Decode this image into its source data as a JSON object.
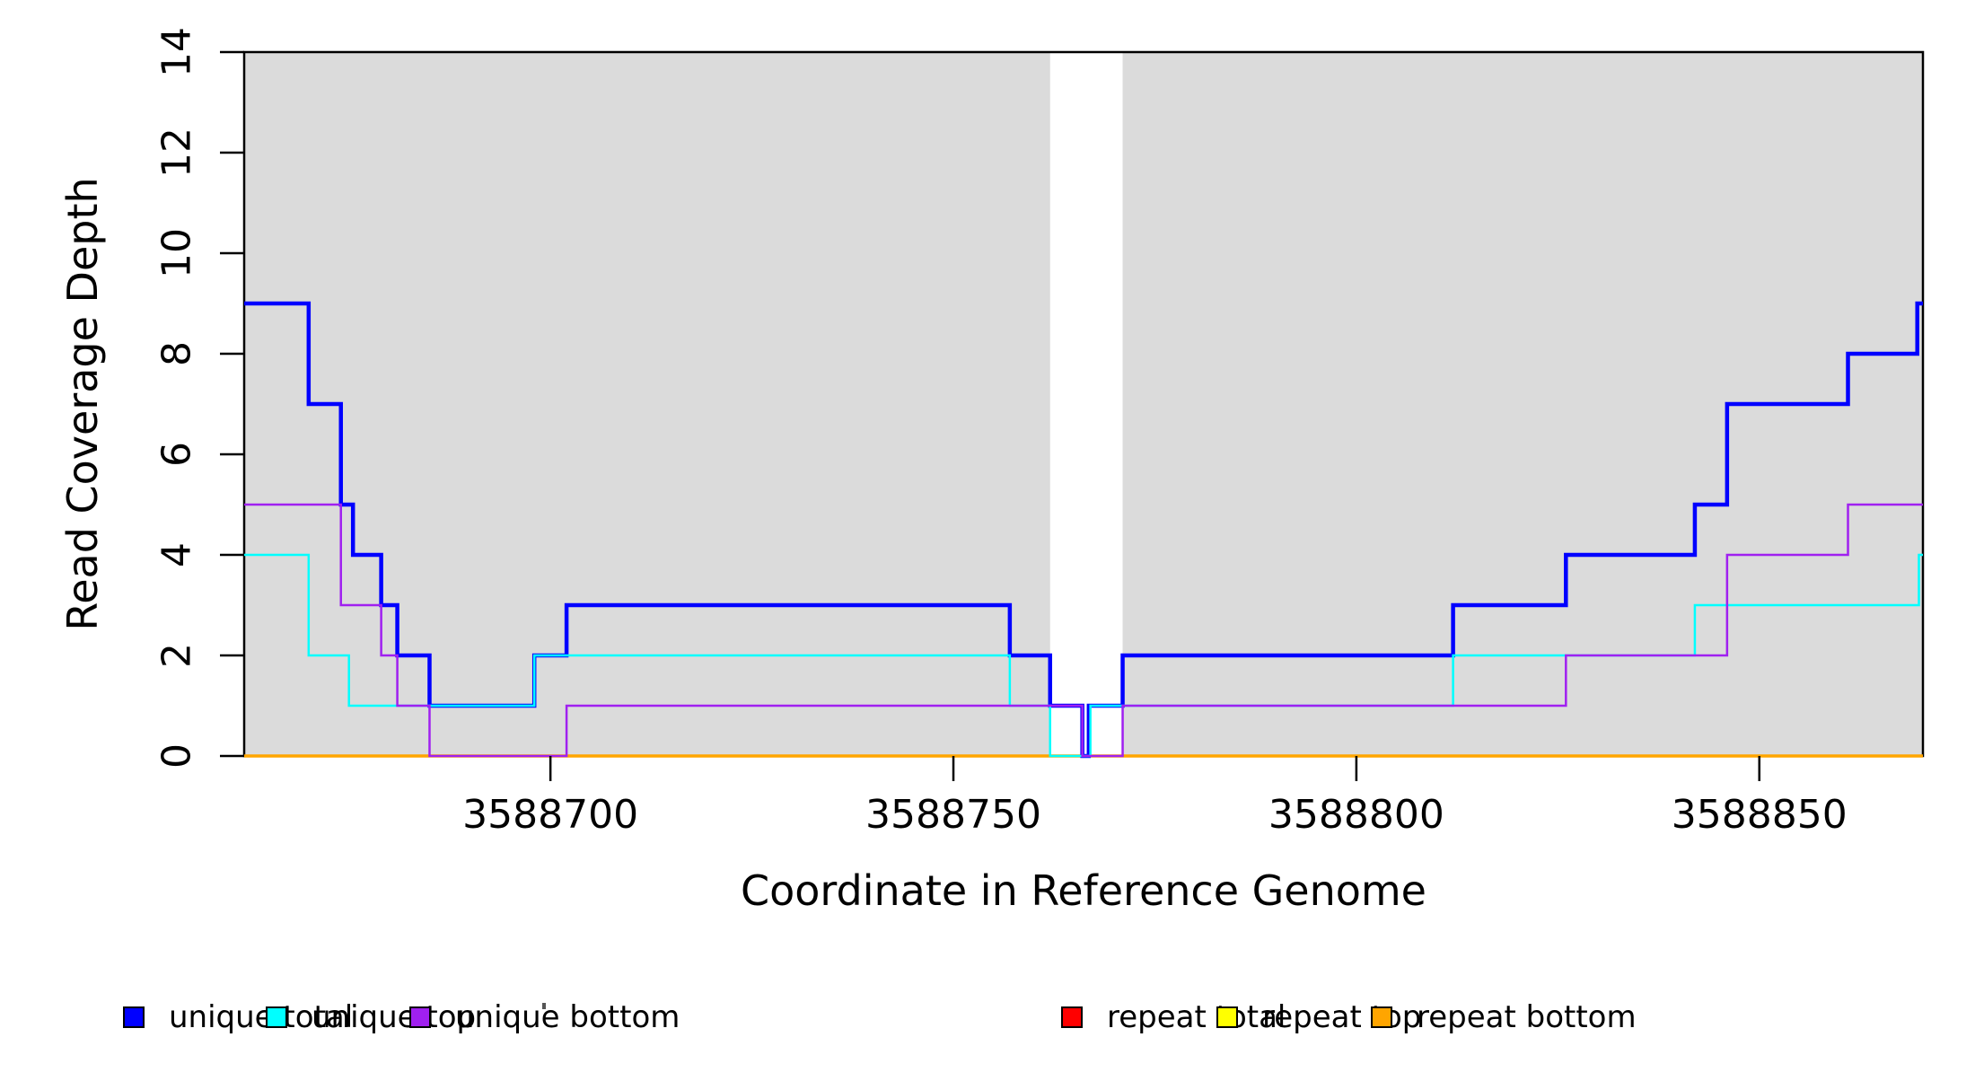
{
  "chart_data": {
    "type": "line",
    "subtype": "step",
    "title": "",
    "xlabel": "Coordinate in Reference Genome",
    "ylabel": "Read Coverage Depth",
    "xlim": [
      3588662,
      3588870.3
    ],
    "ylim": [
      0,
      14
    ],
    "grid": false,
    "background_color": "#FFFFFF",
    "shaded_color": "#DBDBDB",
    "axis_color": "#000000",
    "xticks": [
      {
        "value": 3588700,
        "label": "3588700"
      },
      {
        "value": 3588750,
        "label": "3588750"
      },
      {
        "value": 3588800,
        "label": "3588800"
      },
      {
        "value": 3588850,
        "label": "3588850"
      }
    ],
    "yticks": [
      {
        "value": 0,
        "label": "0"
      },
      {
        "value": 2,
        "label": "2"
      },
      {
        "value": 4,
        "label": "4"
      },
      {
        "value": 6,
        "label": "6"
      },
      {
        "value": 8,
        "label": "8"
      },
      {
        "value": 10,
        "label": "10"
      },
      {
        "value": 12,
        "label": "12"
      },
      {
        "value": 14,
        "label": "14"
      }
    ],
    "shaded_regions": [
      {
        "x0": 3588662,
        "x1": 3588762
      },
      {
        "x0": 3588771,
        "x1": 3588870.3
      }
    ],
    "series": [
      {
        "name": "unique total",
        "color": "#0000FF",
        "width": 4.5,
        "steps": [
          [
            3588662,
            9
          ],
          [
            3588670,
            7
          ],
          [
            3588674,
            5
          ],
          [
            3588675.5,
            4
          ],
          [
            3588679,
            3
          ],
          [
            3588681,
            2
          ],
          [
            3588685,
            1
          ],
          [
            3588698,
            2
          ],
          [
            3588702,
            3
          ],
          [
            3588757,
            2
          ],
          [
            3588762,
            1
          ],
          [
            3588766,
            0
          ],
          [
            3588766.8,
            1
          ],
          [
            3588771,
            2
          ],
          [
            3588812,
            3
          ],
          [
            3588826,
            4
          ],
          [
            3588842,
            5
          ],
          [
            3588846,
            7
          ],
          [
            3588861,
            8
          ],
          [
            3588869.6,
            9
          ]
        ],
        "end": 3588870.3
      },
      {
        "name": "unique top",
        "color": "#00FFFF",
        "width": 2.5,
        "steps": [
          [
            3588662,
            4
          ],
          [
            3588670,
            2
          ],
          [
            3588675,
            1
          ],
          [
            3588698,
            2
          ],
          [
            3588757,
            1
          ],
          [
            3588762,
            0
          ],
          [
            3588767,
            1
          ],
          [
            3588812,
            2
          ],
          [
            3588842,
            3
          ],
          [
            3588869.8,
            4
          ]
        ],
        "end": 3588870.3
      },
      {
        "name": "unique bottom",
        "color": "#A020F0",
        "width": 2.5,
        "steps": [
          [
            3588662,
            5
          ],
          [
            3588674,
            3
          ],
          [
            3588679,
            2
          ],
          [
            3588681,
            1
          ],
          [
            3588685,
            0
          ],
          [
            3588702,
            1
          ],
          [
            3588766,
            0
          ],
          [
            3588771,
            1
          ],
          [
            3588826,
            2
          ],
          [
            3588846,
            4
          ],
          [
            3588861,
            5
          ]
        ],
        "end": 3588870.3
      },
      {
        "name": "repeat total",
        "color": "#FF0000",
        "width": 2.5,
        "steps": [
          [
            3588662,
            0
          ]
        ],
        "end": 3588870.3
      },
      {
        "name": "repeat top",
        "color": "#FFFF00",
        "width": 2.5,
        "steps": [
          [
            3588662,
            0
          ]
        ],
        "end": 3588870.3
      },
      {
        "name": "repeat bottom",
        "color": "#FFA500",
        "width": 3.5,
        "steps": [
          [
            3588662,
            0
          ]
        ],
        "end": 3588870.3
      }
    ],
    "draw_order": [
      3,
      4,
      5,
      0,
      1,
      2
    ],
    "legend": {
      "position": "bottom",
      "entries": [
        {
          "label": "unique total",
          "color": "#0000FF"
        },
        {
          "label": "unique top",
          "color": "#00FFFF"
        },
        {
          "label": "unique bottom",
          "color": "#A020F0"
        },
        {
          "label": "repeat total",
          "color": "#FF0000"
        },
        {
          "label": "repeat top",
          "color": "#FFFF00"
        },
        {
          "label": "repeat bottom",
          "color": "#FFA500"
        }
      ]
    }
  }
}
